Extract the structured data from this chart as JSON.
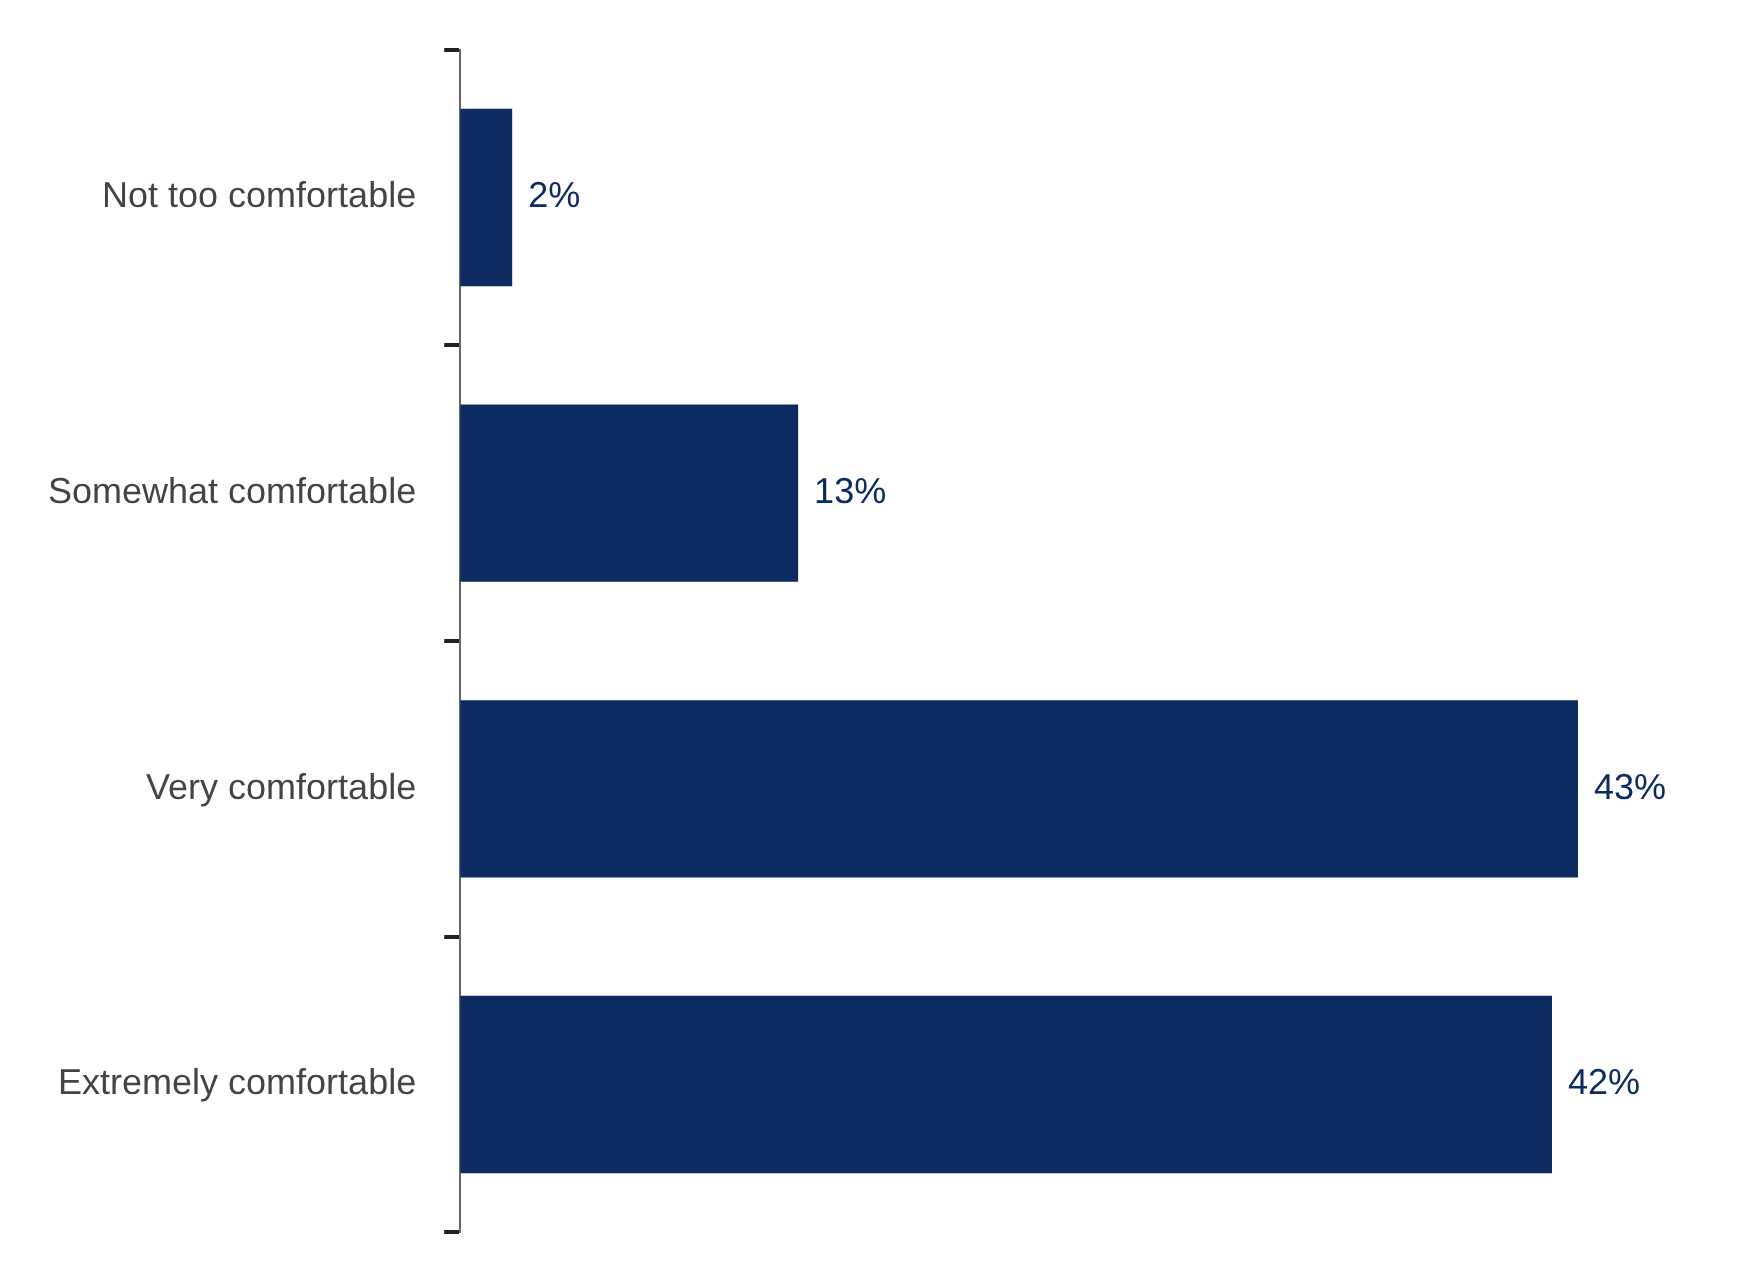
{
  "chart_data": {
    "type": "bar",
    "orientation": "horizontal",
    "categories": [
      "Not too comfortable",
      "Somewhat comfortable",
      "Very comfortable",
      "Extremely comfortable"
    ],
    "values": [
      2,
      13,
      43,
      42
    ],
    "value_labels": [
      "2%",
      "13%",
      "43%",
      "42%"
    ],
    "color": "#0b2b61",
    "grid": false,
    "legend": false
  }
}
